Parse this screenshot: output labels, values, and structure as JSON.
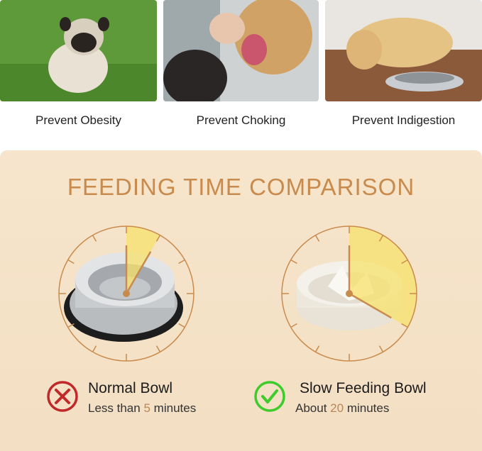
{
  "benefits": [
    {
      "label": "Prevent Obesity"
    },
    {
      "label": "Prevent Choking"
    },
    {
      "label": "Prevent Indigestion"
    }
  ],
  "title": "FEEDING TIME COMPARISON",
  "colors": {
    "accent": "#c98b4d",
    "wedge": "#f7e26b",
    "bad": "#c0282a",
    "good": "#3ecb2c"
  },
  "normal": {
    "name": "Normal Bowl",
    "prefix": "Less than",
    "value": "5",
    "unit": "minutes",
    "icon": "x-circle-icon",
    "minutes": 5
  },
  "slow": {
    "name": "Slow Feeding Bowl",
    "prefix": "About",
    "value": "20",
    "unit": "minutes",
    "icon": "check-circle-icon",
    "minutes": 20
  }
}
